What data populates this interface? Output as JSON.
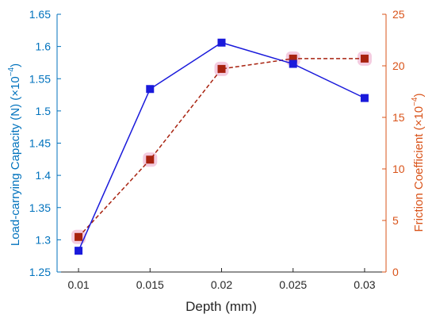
{
  "chart_data": {
    "type": "line",
    "xlabel": "Depth (mm)",
    "x": [
      0.01,
      0.015,
      0.02,
      0.025,
      0.03
    ],
    "x_ticks": [
      "0.01",
      "0.015",
      "0.02",
      "0.025",
      "0.03"
    ],
    "xlim": [
      0.0085,
      0.0315
    ],
    "grid": false,
    "legend": false,
    "left_axis": {
      "label": "Load-carrying Capacity (N)",
      "multiplier": "(×10",
      "exponent": "−4",
      "close": ")",
      "ylim": [
        1.25,
        1.65
      ],
      "ticks": [
        1.25,
        1.3,
        1.35,
        1.4,
        1.45,
        1.5,
        1.55,
        1.6,
        1.65
      ],
      "tick_labels": [
        "1.25",
        "1.3",
        "1.35",
        "1.4",
        "1.45",
        "1.5",
        "1.55",
        "1.6",
        "1.65"
      ],
      "color": "#0072BD"
    },
    "right_axis": {
      "label": "Friction Coefficient",
      "multiplier": "(×10",
      "exponent": "−4",
      "close": ")",
      "ylim": [
        0,
        25
      ],
      "ticks": [
        0,
        5,
        10,
        15,
        20,
        25
      ],
      "tick_labels": [
        "0",
        "5",
        "10",
        "15",
        "20",
        "25"
      ],
      "color": "#D95319"
    },
    "series": [
      {
        "axis": "left",
        "values": [
          1.283,
          1.534,
          1.606,
          1.573,
          1.52
        ],
        "line_color": "#1a1adb",
        "line_style": "solid",
        "marker": "square",
        "marker_color": "#1a1adb"
      },
      {
        "axis": "right",
        "values": [
          3.4,
          10.9,
          19.7,
          20.7,
          20.7
        ],
        "line_color": "#A8220F",
        "line_style": "dashed",
        "marker": "square",
        "marker_color": "#A8220F",
        "halo_color": "#f3c6dd"
      }
    ]
  }
}
